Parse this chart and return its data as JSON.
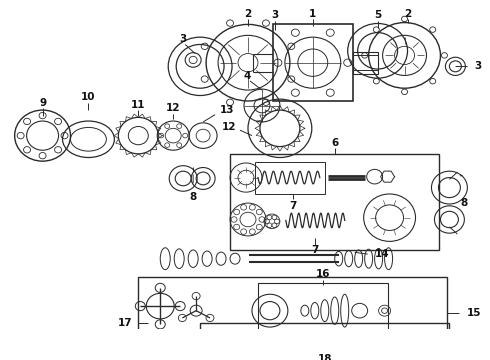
{
  "bg_color": "#ffffff",
  "fig_width": 4.9,
  "fig_height": 3.6,
  "dpi": 100,
  "lc": "#2a2a2a",
  "lc2": "#555555",
  "lc3": "#888888"
}
